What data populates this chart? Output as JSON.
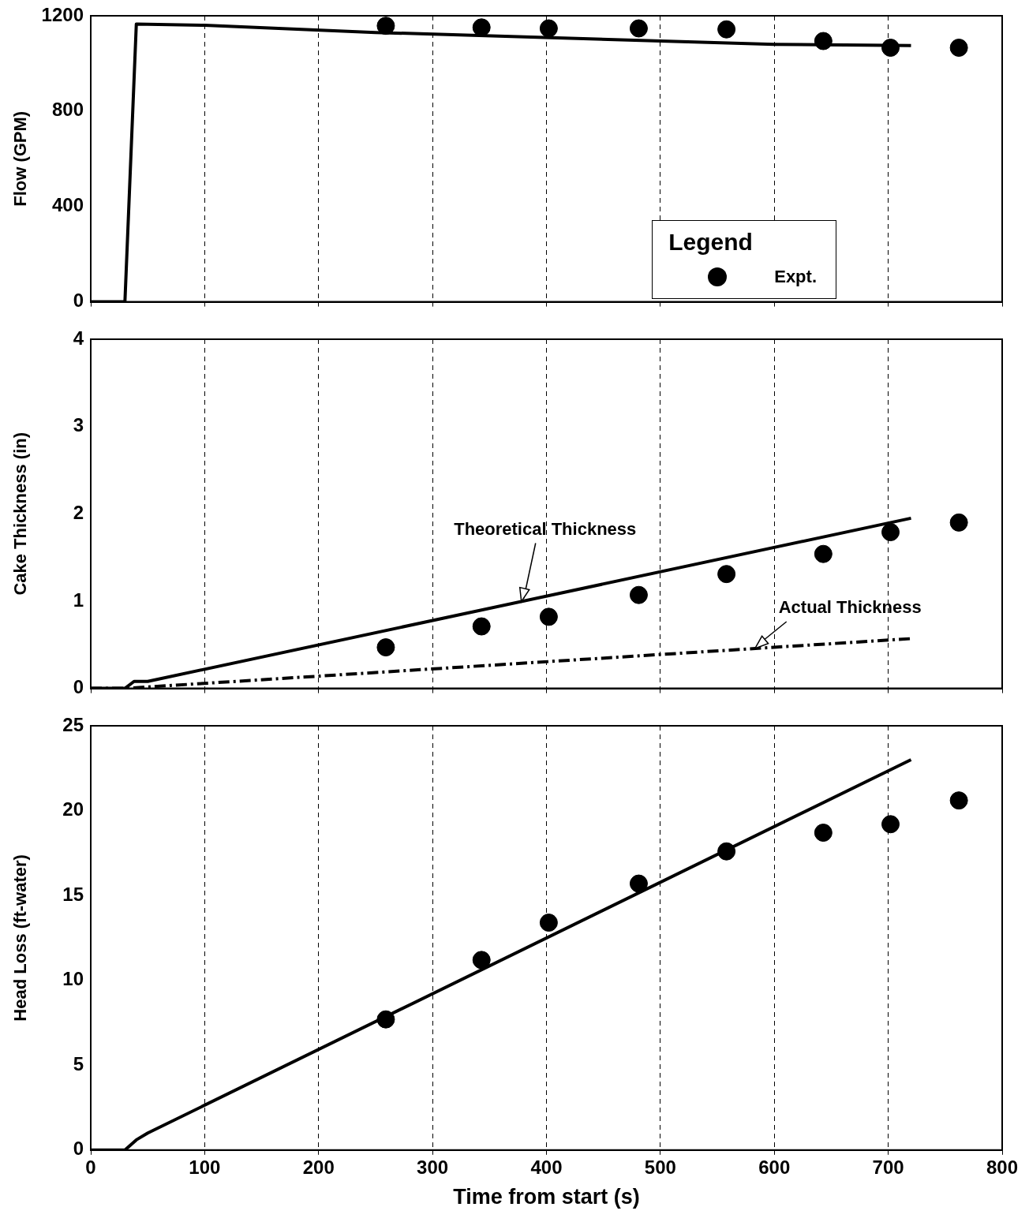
{
  "chart_data": [
    {
      "type": "line",
      "ylabel": "Flow (GPM)",
      "xlim": [
        0,
        800
      ],
      "xticks": [
        0,
        100,
        200,
        300,
        400,
        500,
        600,
        700,
        800
      ],
      "ylim": [
        0,
        1200
      ],
      "yticks": [
        0,
        400,
        800,
        1200
      ],
      "grid": "x",
      "tick_labels": "y",
      "legend": "bottom right",
      "legend_title": "Legend",
      "series": [
        {
          "type": "line",
          "color": "#000000",
          "marker": "none",
          "line_style": "solid",
          "x": [
            0,
            30,
            40,
            100,
            250,
            600,
            720
          ],
          "values": [
            0,
            0,
            1165,
            1160,
            1130,
            1080,
            1075
          ]
        },
        {
          "type": "scatter",
          "name": "Expt.",
          "color": "#000000",
          "marker": "circle",
          "x": [
            259,
            343,
            402,
            481,
            558,
            643,
            702,
            762
          ],
          "values": [
            1158,
            1151,
            1147,
            1147,
            1143,
            1094,
            1066,
            1066
          ]
        }
      ]
    },
    {
      "type": "line",
      "ylabel": "Cake Thickness (in)",
      "xlim": [
        0,
        800
      ],
      "xticks": [
        0,
        100,
        200,
        300,
        400,
        500,
        600,
        700,
        800
      ],
      "ylim": [
        0,
        4
      ],
      "yticks": [
        0,
        1,
        2,
        3,
        4
      ],
      "grid": "x",
      "tick_labels": "y",
      "annotations": [
        {
          "text": "Theoretical Thickness",
          "x": 378,
          "y": 0.995
        },
        {
          "text": "Actual Thickness",
          "x": 583,
          "y": 0.457
        }
      ],
      "series": [
        {
          "type": "line",
          "color": "#000000",
          "marker": "none",
          "line_style": "solid",
          "x": [
            0,
            30,
            38,
            50,
            720
          ],
          "values": [
            0,
            0,
            0.08,
            0.08,
            1.95
          ]
        },
        {
          "type": "line",
          "color": "#000000",
          "marker": "none",
          "line_style": "dashed",
          "x": [
            0,
            30,
            720
          ],
          "values": [
            0,
            0,
            0.57
          ]
        },
        {
          "type": "scatter",
          "color": "#000000",
          "marker": "circle",
          "x": [
            259,
            343,
            402,
            481,
            558,
            643,
            702,
            762
          ],
          "values": [
            0.47,
            0.71,
            0.82,
            1.07,
            1.31,
            1.54,
            1.79,
            1.9
          ]
        }
      ]
    },
    {
      "type": "line",
      "ylabel": "Head Loss (ft-water)",
      "xlabel": "Time from start (s)",
      "xlim": [
        0,
        800
      ],
      "xticks": [
        0,
        100,
        200,
        300,
        400,
        500,
        600,
        700,
        800
      ],
      "ylim": [
        0,
        25
      ],
      "yticks": [
        0,
        5,
        10,
        15,
        20,
        25
      ],
      "grid": "x",
      "series": [
        {
          "type": "line",
          "color": "#000000",
          "marker": "none",
          "line_style": "solid",
          "x": [
            0,
            30,
            40,
            50,
            720
          ],
          "values": [
            0,
            0,
            0.6,
            1.0,
            23
          ]
        },
        {
          "type": "scatter",
          "color": "#000000",
          "marker": "circle",
          "x": [
            259,
            343,
            402,
            481,
            558,
            643,
            702,
            762
          ],
          "values": [
            7.7,
            11.2,
            13.4,
            15.7,
            17.6,
            18.7,
            19.2,
            20.6
          ]
        }
      ]
    }
  ]
}
